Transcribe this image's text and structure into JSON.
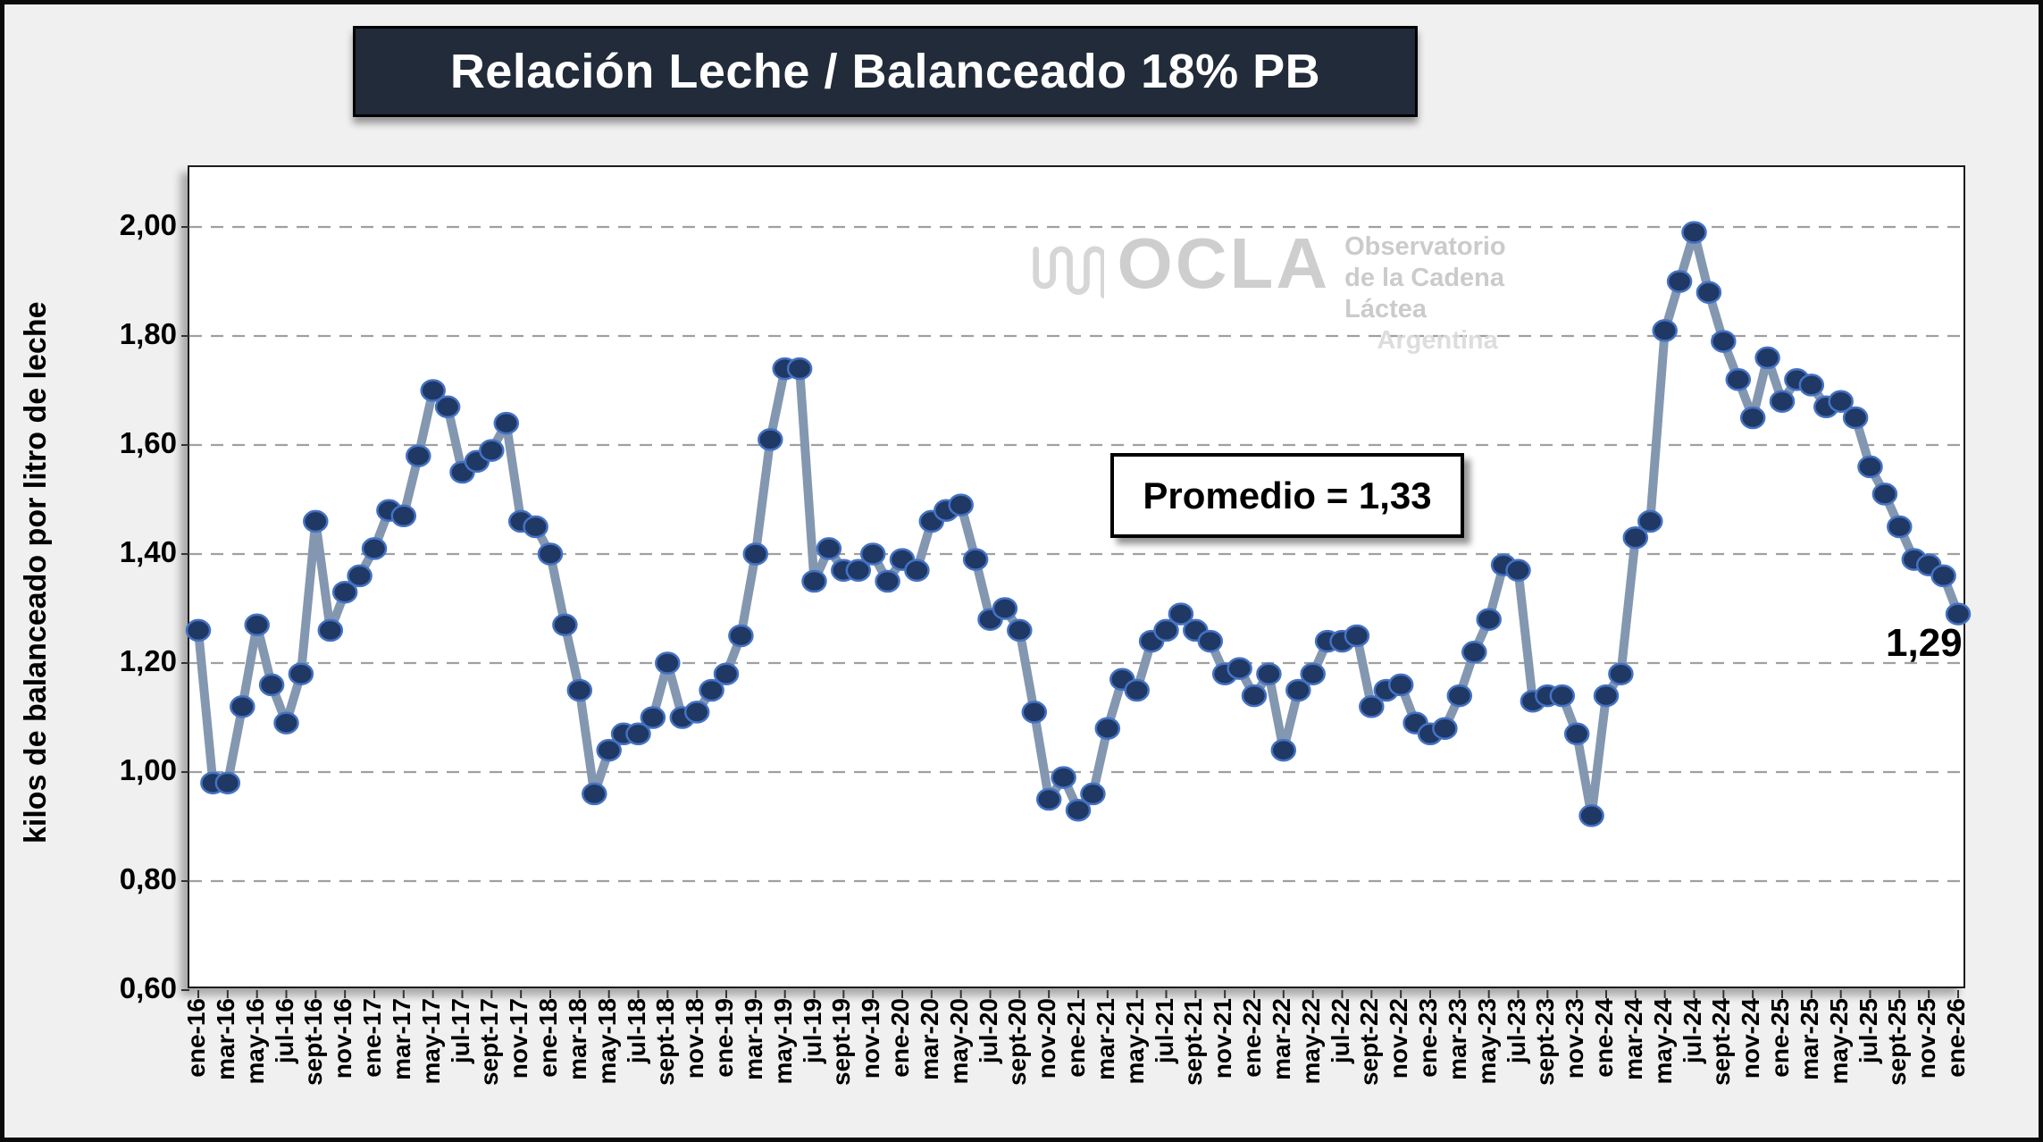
{
  "title": "Relación Leche / Balanceado 18% PB",
  "watermark": {
    "brand": "OCLA",
    "line1": "Observatorio",
    "line2": "de la Cadena Láctea",
    "line3": "Argentina"
  },
  "annotation": {
    "label": "Promedio = 1,33"
  },
  "last_point_label": "1,29",
  "y_axis": {
    "title": "kilos de balanceado por litro de leche",
    "ticks": [
      "2,00",
      "1,80",
      "1,60",
      "1,40",
      "1,20",
      "1,00",
      "0,80",
      "0,60"
    ]
  },
  "chart_data": {
    "type": "line",
    "title": "Relación Leche / Balanceado 18% PB",
    "ylabel": "kilos de balanceado por litro de leche",
    "xlabel": "",
    "ylim": [
      0.6,
      2.0
    ],
    "grid": "horizontal-dashed",
    "legend": "none",
    "average_annotation": 1.33,
    "last_value_label": "1,29",
    "x_tick_labels": [
      "ene-16",
      "mar-16",
      "may-16",
      "jul-16",
      "sept-16",
      "nov-16",
      "ene-17",
      "mar-17",
      "may-17",
      "jul-17",
      "sept-17",
      "nov-17",
      "ene-18",
      "mar-18",
      "may-18",
      "jul-18",
      "sept-18",
      "nov-18",
      "ene-19",
      "mar-19",
      "may-19",
      "jul-19",
      "sept-19",
      "nov-19",
      "ene-20",
      "mar-20",
      "may-20",
      "jul-20",
      "sept-20",
      "nov-20",
      "ene-21",
      "mar-21",
      "may-21",
      "jul-21",
      "sept-21",
      "nov-21",
      "ene-22",
      "mar-22",
      "may-22",
      "jul-22",
      "sept-22",
      "nov-22",
      "ene-23",
      "mar-23",
      "may-23",
      "jul-23",
      "sept-23",
      "nov-23",
      "ene-24",
      "mar-24",
      "may-24",
      "jul-24",
      "sept-24",
      "nov-24",
      "ene-25",
      "mar-25",
      "may-25",
      "jul-25",
      "sept-25",
      "nov-25",
      "ene-26"
    ],
    "x_start": "ene-16",
    "x_end": "ene-26",
    "x_frequency": "monthly",
    "values": [
      1.26,
      0.98,
      0.98,
      1.12,
      1.27,
      1.16,
      1.09,
      1.18,
      1.46,
      1.26,
      1.33,
      1.36,
      1.41,
      1.48,
      1.47,
      1.58,
      1.7,
      1.67,
      1.55,
      1.57,
      1.59,
      1.64,
      1.46,
      1.45,
      1.4,
      1.27,
      1.15,
      0.96,
      1.04,
      1.07,
      1.07,
      1.1,
      1.2,
      1.1,
      1.11,
      1.15,
      1.18,
      1.25,
      1.4,
      1.61,
      1.74,
      1.74,
      1.35,
      1.41,
      1.37,
      1.37,
      1.4,
      1.35,
      1.39,
      1.37,
      1.46,
      1.48,
      1.49,
      1.39,
      1.28,
      1.3,
      1.26,
      1.11,
      0.95,
      0.99,
      0.93,
      0.96,
      1.08,
      1.17,
      1.15,
      1.24,
      1.26,
      1.29,
      1.26,
      1.24,
      1.18,
      1.19,
      1.14,
      1.18,
      1.04,
      1.15,
      1.18,
      1.24,
      1.24,
      1.25,
      1.12,
      1.15,
      1.16,
      1.09,
      1.07,
      1.08,
      1.14,
      1.22,
      1.28,
      1.38,
      1.37,
      1.13,
      1.14,
      1.14,
      1.07,
      0.92,
      1.14,
      1.18,
      1.43,
      1.46,
      1.81,
      1.9,
      1.99,
      1.88,
      1.79,
      1.72,
      1.65,
      1.76,
      1.68,
      1.72,
      1.71,
      1.67,
      1.68,
      1.65,
      1.56,
      1.51,
      1.45,
      1.39,
      1.38,
      1.36,
      1.29
    ],
    "colors": {
      "line": "#8497B0",
      "marker_fill": "#1F3864",
      "marker_edge": "#4472C4",
      "gridline": "#A0A0A0",
      "title_bar_bg": "#222B3A",
      "title_text": "#FFFFFF",
      "canvas_bg": "#F0F0F0",
      "plot_bg": "#FFFFFF"
    }
  }
}
